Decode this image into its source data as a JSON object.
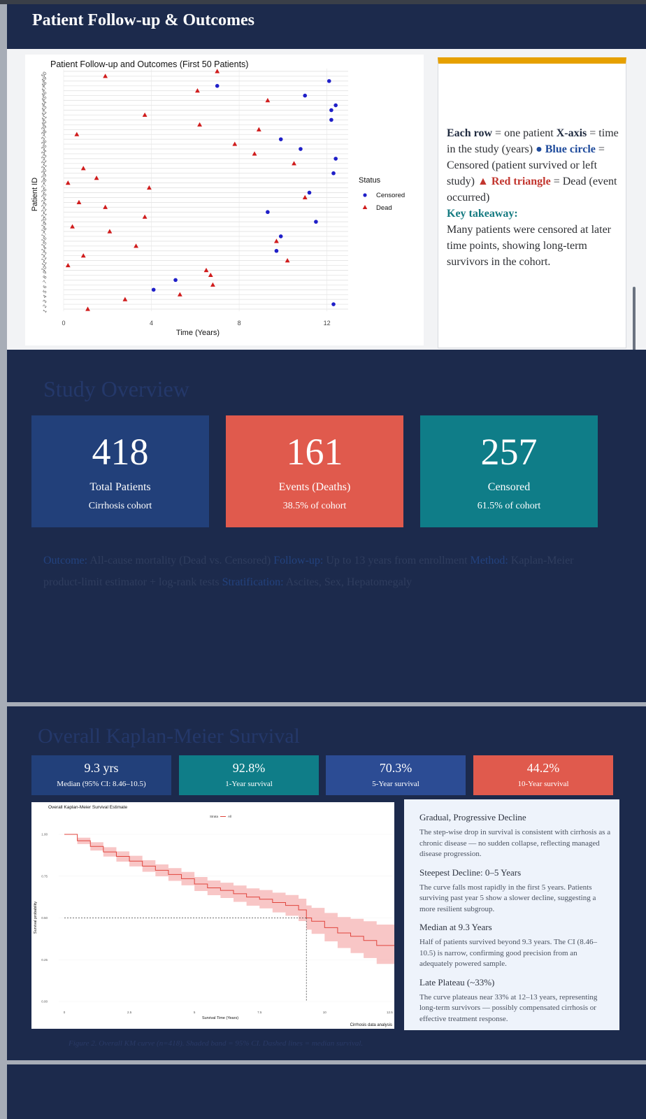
{
  "header": {
    "title": "Patient Follow-up & Outcomes"
  },
  "followup_plot": {
    "title": "Patient Follow-up and Outcomes (First 50 Patients)",
    "xlabel": "Time (Years)",
    "ylabel": "Patient ID",
    "legend_title": "Status",
    "legend_censored": "Censored",
    "legend_dead": "Dead",
    "colors": {
      "censored": "#1f1fc8",
      "dead": "#d01c1c"
    }
  },
  "legend_panel": {
    "row_key": "Each row",
    "row_text": " = one patient ",
    "xaxis_key": "X-axis",
    "xaxis_text": " = time in the study (years) ",
    "blue_key": "● Blue circle",
    "blue_text": " = Censored (patient survived or left study) ",
    "red_key": "▲ Red triangle",
    "red_text": " = Dead (event occurred)",
    "takeaway_key": "Key takeaway:",
    "takeaway_text": "Many patients were censored at later time points, showing long-term survivors in the cohort."
  },
  "study_overview": {
    "title": "Study Overview",
    "cards": [
      {
        "value": "418",
        "label": "Total Patients",
        "sub": "Cirrhosis cohort",
        "color": "#22407a"
      },
      {
        "value": "161",
        "label": "Events (Deaths)",
        "sub": "38.5% of cohort",
        "color": "#e05a4d"
      },
      {
        "value": "257",
        "label": "Censored",
        "sub": "61.5% of cohort",
        "color": "#0f7d88"
      }
    ],
    "outcome_key": "Outcome:",
    "outcome_text": " All-cause mortality (Dead vs. Censored) ",
    "followup_key": "Follow-up:",
    "followup_text": " Up to 13 years from enrollment ",
    "method_key": "Method:",
    "method_text": " Kaplan-Meier product-limit estimator + log-rank tests ",
    "strat_key": "Stratification:",
    "strat_text": " Ascites, Sex, Hepatomegaly"
  },
  "km": {
    "title": "Overall Kaplan-Meier Survival",
    "stats": [
      {
        "value": "9.3 yrs",
        "label": "Median (95% CI: 8.46–10.5)",
        "color": "#22407a"
      },
      {
        "value": "92.8%",
        "label": "1-Year survival",
        "color": "#0f7d88"
      },
      {
        "value": "70.3%",
        "label": "5-Year survival",
        "color": "#2c4c94"
      },
      {
        "value": "44.2%",
        "label": "10-Year survival",
        "color": "#e05a4d"
      }
    ],
    "notes": [
      {
        "heading": "Gradual, Progressive Decline",
        "text": "The step-wise drop in survival is consistent with cirrhosis as a chronic disease — no sudden collapse, reflecting managed disease progression."
      },
      {
        "heading": "Steepest Decline: 0–5 Years",
        "text": "The curve falls most rapidly in the first 5 years. Patients surviving past year 5 show a slower decline, suggesting a more resilient subgroup."
      },
      {
        "heading": "Median at 9.3 Years",
        "text": "Half of patients survived beyond 9.3 years. The CI (8.46–10.5) is narrow, confirming good precision from an adequately powered sample."
      },
      {
        "heading": "Late Plateau (~33%)",
        "text": "The curve plateaus near 33% at 12–13 years, representing long-term survivors — possibly compensated cirrhosis or effective treatment response."
      }
    ],
    "caption": "Figure 2. Overall KM curve (n=418). Shaded band = 95% CI. Dashed lines = median survival.",
    "plot": {
      "title": "Overall Kaplan-Meier Survival Estimate",
      "xlabel": "Survival Time (Years)",
      "ylabel": "Survival probability",
      "strata_label": "Strata",
      "strata_value": "All",
      "caption": "Cirrhosis data analysis",
      "curve_color": "#e0443c",
      "band_color": "#f5b3b3"
    }
  },
  "chart_data": [
    {
      "type": "scatter",
      "title": "Patient Follow-up and Outcomes (First 50 Patients)",
      "xlabel": "Time (Years)",
      "ylabel": "Patient ID",
      "xlim": [
        0,
        13
      ],
      "ylim": [
        1,
        50
      ],
      "x_ticks": [
        0,
        4,
        8,
        12
      ],
      "points": [
        {
          "id": 1,
          "t": 1.1,
          "status": "Dead"
        },
        {
          "id": 2,
          "t": 12.3,
          "status": "Censored"
        },
        {
          "id": 3,
          "t": 2.8,
          "status": "Dead"
        },
        {
          "id": 4,
          "t": 5.3,
          "status": "Dead"
        },
        {
          "id": 5,
          "t": 4.1,
          "status": "Censored"
        },
        {
          "id": 6,
          "t": 6.8,
          "status": "Dead"
        },
        {
          "id": 7,
          "t": 5.1,
          "status": "Censored"
        },
        {
          "id": 8,
          "t": 6.7,
          "status": "Dead"
        },
        {
          "id": 9,
          "t": 6.5,
          "status": "Dead"
        },
        {
          "id": 10,
          "t": 0.2,
          "status": "Dead"
        },
        {
          "id": 11,
          "t": 10.2,
          "status": "Dead"
        },
        {
          "id": 12,
          "t": 0.9,
          "status": "Dead"
        },
        {
          "id": 13,
          "t": 9.7,
          "status": "Censored"
        },
        {
          "id": 14,
          "t": 3.3,
          "status": "Dead"
        },
        {
          "id": 15,
          "t": 9.7,
          "status": "Dead"
        },
        {
          "id": 16,
          "t": 9.9,
          "status": "Censored"
        },
        {
          "id": 17,
          "t": 2.1,
          "status": "Dead"
        },
        {
          "id": 18,
          "t": 0.4,
          "status": "Dead"
        },
        {
          "id": 19,
          "t": 11.5,
          "status": "Censored"
        },
        {
          "id": 20,
          "t": 3.7,
          "status": "Dead"
        },
        {
          "id": 21,
          "t": 9.3,
          "status": "Censored"
        },
        {
          "id": 22,
          "t": 1.9,
          "status": "Dead"
        },
        {
          "id": 23,
          "t": 0.7,
          "status": "Dead"
        },
        {
          "id": 24,
          "t": 11.0,
          "status": "Dead"
        },
        {
          "id": 25,
          "t": 11.2,
          "status": "Censored"
        },
        {
          "id": 26,
          "t": 3.9,
          "status": "Dead"
        },
        {
          "id": 27,
          "t": 0.2,
          "status": "Dead"
        },
        {
          "id": 28,
          "t": 1.5,
          "status": "Dead"
        },
        {
          "id": 29,
          "t": 12.3,
          "status": "Censored"
        },
        {
          "id": 30,
          "t": 0.9,
          "status": "Dead"
        },
        {
          "id": 31,
          "t": 10.5,
          "status": "Dead"
        },
        {
          "id": 32,
          "t": 12.4,
          "status": "Censored"
        },
        {
          "id": 33,
          "t": 8.7,
          "status": "Dead"
        },
        {
          "id": 34,
          "t": 10.8,
          "status": "Censored"
        },
        {
          "id": 35,
          "t": 7.8,
          "status": "Dead"
        },
        {
          "id": 36,
          "t": 9.9,
          "status": "Censored"
        },
        {
          "id": 37,
          "t": 0.6,
          "status": "Dead"
        },
        {
          "id": 38,
          "t": 8.9,
          "status": "Dead"
        },
        {
          "id": 39,
          "t": 6.2,
          "status": "Dead"
        },
        {
          "id": 40,
          "t": 12.2,
          "status": "Censored"
        },
        {
          "id": 41,
          "t": 3.7,
          "status": "Dead"
        },
        {
          "id": 42,
          "t": 12.2,
          "status": "Censored"
        },
        {
          "id": 43,
          "t": 12.4,
          "status": "Censored"
        },
        {
          "id": 44,
          "t": 9.3,
          "status": "Dead"
        },
        {
          "id": 45,
          "t": 11.0,
          "status": "Censored"
        },
        {
          "id": 46,
          "t": 6.1,
          "status": "Dead"
        },
        {
          "id": 47,
          "t": 7.0,
          "status": "Censored"
        },
        {
          "id": 48,
          "t": 12.1,
          "status": "Censored"
        },
        {
          "id": 49,
          "t": 1.9,
          "status": "Dead"
        },
        {
          "id": 50,
          "t": 7.0,
          "status": "Dead"
        }
      ]
    },
    {
      "type": "line",
      "title": "Overall Kaplan-Meier Survival Estimate",
      "xlabel": "Survival Time (Years)",
      "ylabel": "Survival probability",
      "xlim": [
        0,
        13
      ],
      "ylim": [
        0,
        1
      ],
      "x_ticks": [
        0,
        2.5,
        5,
        7.5,
        10,
        12.5
      ],
      "y_ticks": [
        0.0,
        0.25,
        0.5,
        0.75,
        1.0
      ],
      "series": [
        {
          "name": "All",
          "x": [
            0,
            0.5,
            1,
            1.5,
            2,
            2.5,
            3,
            3.5,
            4,
            4.5,
            5,
            5.5,
            6,
            6.5,
            7,
            7.5,
            8,
            8.5,
            9,
            9.3,
            9.5,
            10,
            10.5,
            11,
            11.5,
            12,
            12.5,
            13
          ],
          "y": [
            1.0,
            0.962,
            0.928,
            0.895,
            0.868,
            0.84,
            0.81,
            0.785,
            0.76,
            0.735,
            0.703,
            0.68,
            0.665,
            0.645,
            0.625,
            0.612,
            0.592,
            0.575,
            0.548,
            0.5,
            0.48,
            0.442,
            0.41,
            0.39,
            0.365,
            0.335,
            0.335,
            0.335
          ],
          "lower": [
            1.0,
            0.942,
            0.903,
            0.867,
            0.837,
            0.808,
            0.776,
            0.749,
            0.722,
            0.695,
            0.661,
            0.636,
            0.619,
            0.596,
            0.573,
            0.557,
            0.533,
            0.513,
            0.481,
            0.43,
            0.405,
            0.36,
            0.32,
            0.29,
            0.26,
            0.225,
            0.225,
            0.225
          ],
          "upper": [
            1.0,
            0.98,
            0.953,
            0.923,
            0.898,
            0.872,
            0.845,
            0.82,
            0.798,
            0.775,
            0.745,
            0.724,
            0.711,
            0.694,
            0.677,
            0.667,
            0.651,
            0.637,
            0.615,
            0.575,
            0.56,
            0.53,
            0.505,
            0.495,
            0.48,
            0.46,
            0.46,
            0.46
          ]
        }
      ],
      "median": 9.3
    }
  ]
}
